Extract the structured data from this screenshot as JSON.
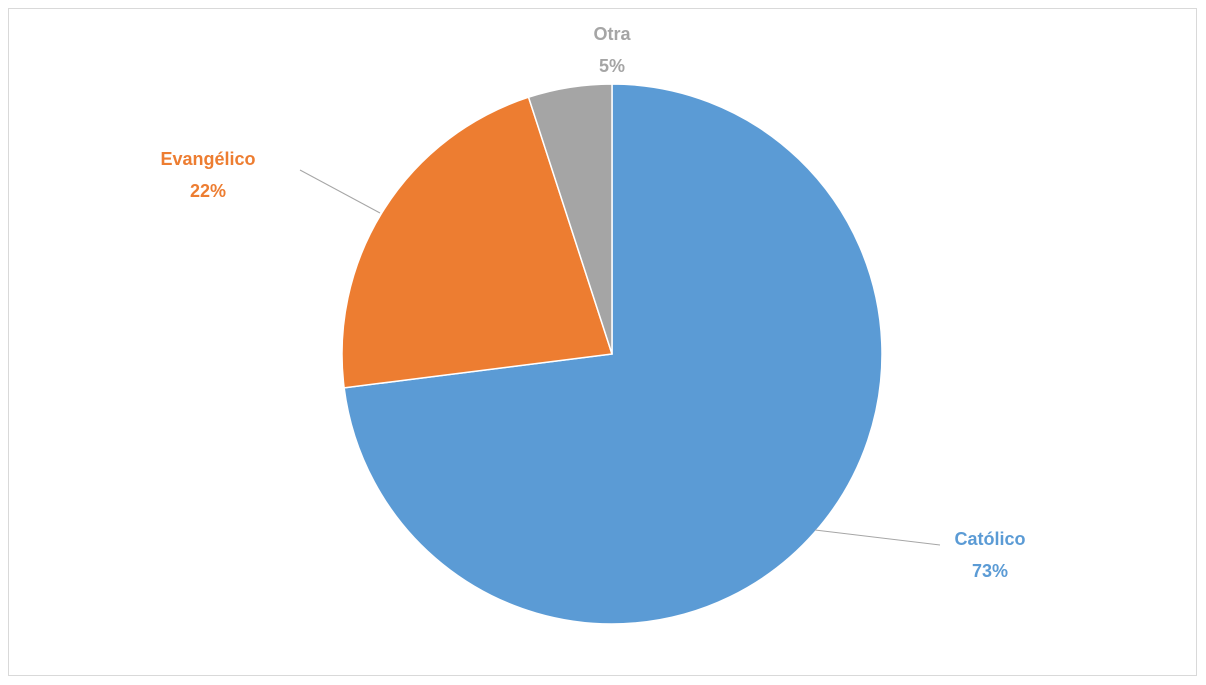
{
  "chart_data": {
    "type": "pie",
    "categories": [
      "Católico",
      "Evangélico",
      "Otra"
    ],
    "values": [
      73,
      22,
      5
    ],
    "value_labels": [
      "73%",
      "22%",
      "5%"
    ],
    "colors": [
      "#5b9bd5",
      "#ed7d31",
      "#a5a5a5"
    ]
  }
}
